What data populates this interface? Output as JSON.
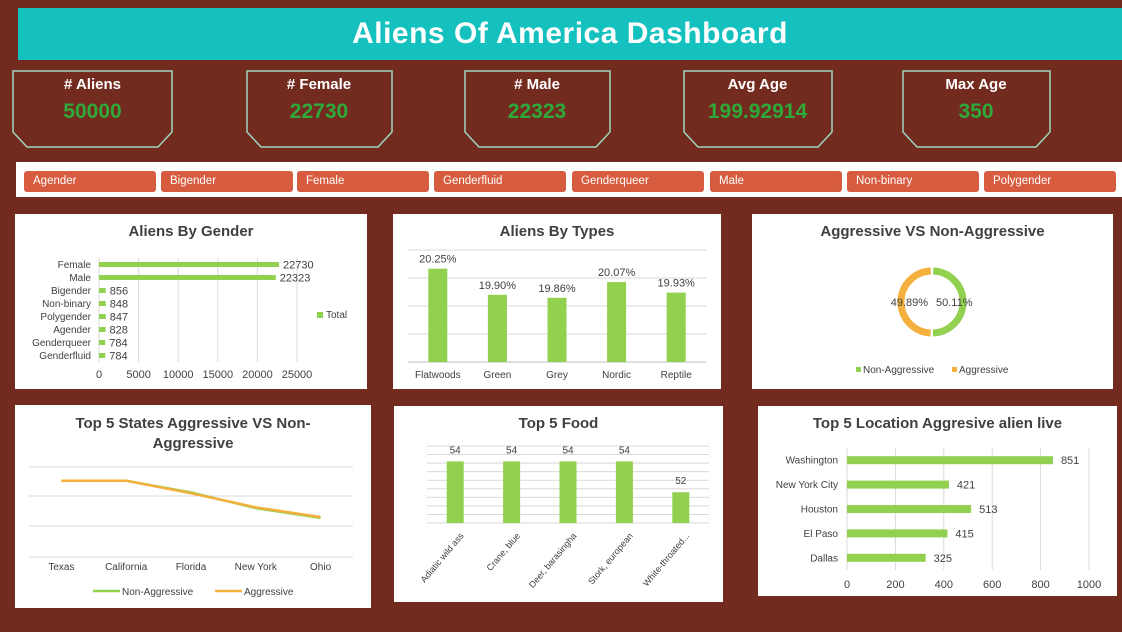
{
  "dashboard": {
    "title": "Aliens Of America Dashboard"
  },
  "kpis": [
    {
      "label": "# Aliens",
      "value": "50000"
    },
    {
      "label": "# Female",
      "value": "22730"
    },
    {
      "label": "# Male",
      "value": "22323"
    },
    {
      "label": "Avg Age",
      "value": "199.92914"
    },
    {
      "label": "Max Age",
      "value": "350"
    }
  ],
  "slicer": {
    "items": [
      "Agender",
      "Bigender",
      "Female",
      "Genderfluid",
      "Genderqueer",
      "Male",
      "Non-binary",
      "Polygender"
    ]
  },
  "colors": {
    "green": "#92d050",
    "orange": "#f4b03c",
    "header": "#15c1bf",
    "slicer": "#d75b3f",
    "background": "#722b1e",
    "kpi_value": "#2ea93a"
  },
  "chart_data": [
    {
      "id": "gender",
      "type": "bar",
      "orientation": "horizontal",
      "title": "Aliens By Gender",
      "categories": [
        "Female",
        "Male",
        "Bigender",
        "Non-binary",
        "Polygender",
        "Agender",
        "Genderqueer",
        "Genderfluid"
      ],
      "series": [
        {
          "name": "Total",
          "values": [
            22730,
            22323,
            856,
            848,
            847,
            828,
            784,
            784
          ]
        }
      ],
      "xlim": [
        0,
        25000
      ],
      "xticks": [
        0,
        5000,
        10000,
        15000,
        20000,
        25000
      ],
      "legend": "right",
      "grid": true
    },
    {
      "id": "types",
      "type": "bar",
      "title": "Aliens By Types",
      "categories": [
        "Flatwoods",
        "Green",
        "Grey",
        "Nordic",
        "Reptile"
      ],
      "values": [
        20.25,
        19.9,
        19.86,
        20.07,
        19.93
      ],
      "data_labels": [
        "20.25%",
        "19.90%",
        "19.86%",
        "20.07%",
        "19.93%"
      ],
      "grid": true
    },
    {
      "id": "aggressive",
      "type": "pie",
      "variant": "doughnut",
      "title": "Aggressive VS Non-Aggressive",
      "labels": [
        "Non-Aggressive",
        "Aggressive"
      ],
      "values": [
        50.11,
        49.89
      ],
      "data_labels": [
        "50.11%",
        "49.89%"
      ],
      "legend": "bottom"
    },
    {
      "id": "states",
      "type": "line",
      "title": "Top 5  States Aggressive VS Non-Aggressive",
      "categories": [
        "Texas",
        "California",
        "Florida",
        "New York",
        "Ohio"
      ],
      "series": [
        {
          "name": "Non-Aggressive",
          "values": [
            395,
            395,
            365,
            325,
            300
          ]
        },
        {
          "name": "Aggressive",
          "values": [
            395,
            395,
            363,
            327,
            302
          ]
        }
      ],
      "ylim": [
        200,
        430
      ],
      "legend": "bottom",
      "grid": true
    },
    {
      "id": "food",
      "type": "bar",
      "title": "Top 5 Food",
      "categories": [
        "Adiatic wild ass",
        "Crane, blue",
        "Deer, barasingha",
        "Stork, european",
        "White-throated..."
      ],
      "values": [
        54,
        54,
        54,
        54,
        52
      ],
      "ylim": [
        50,
        55
      ],
      "grid": true
    },
    {
      "id": "locations",
      "type": "bar",
      "orientation": "horizontal",
      "title": "Top 5 Location Aggresive alien live",
      "categories": [
        "Washington",
        "New York City",
        "Houston",
        "El Paso",
        "Dallas"
      ],
      "values": [
        851,
        421,
        513,
        415,
        325
      ],
      "xlim": [
        0,
        1000
      ],
      "xticks": [
        0,
        200,
        400,
        600,
        800,
        1000
      ],
      "grid": true
    }
  ]
}
